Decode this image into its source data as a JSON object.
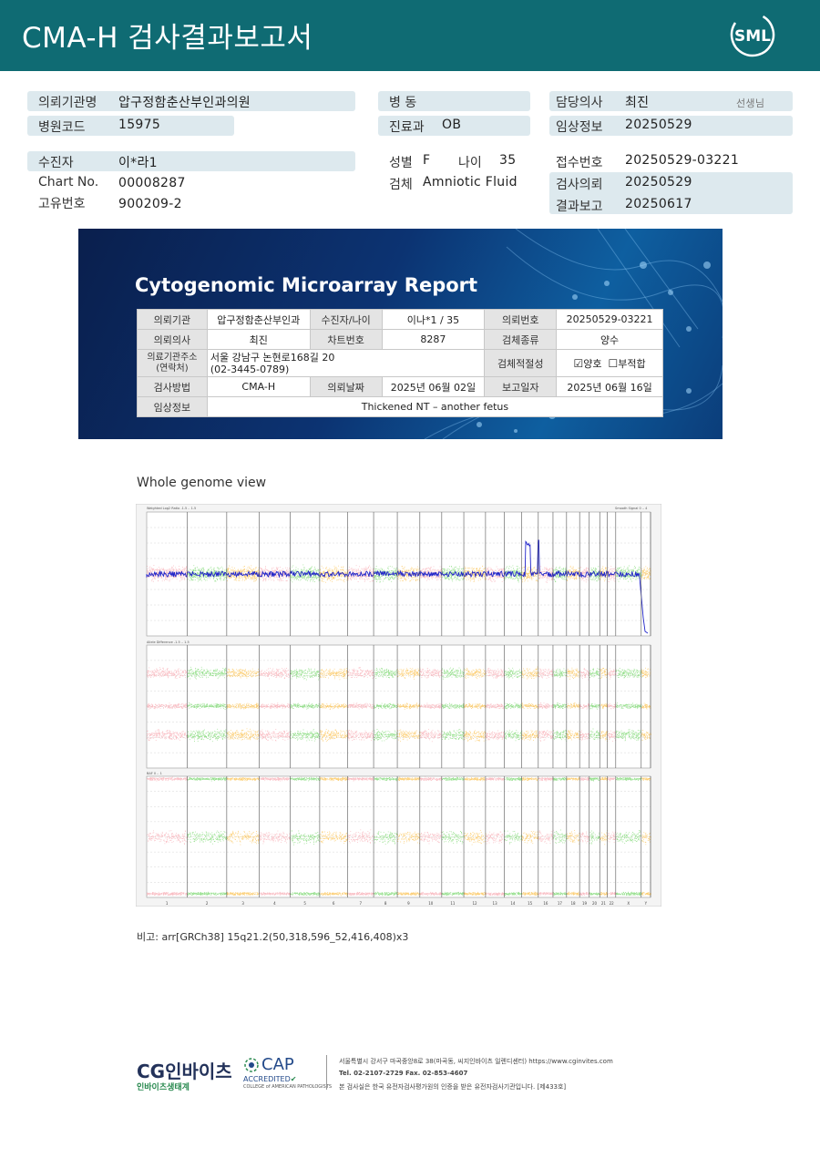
{
  "header": {
    "title": "CMA-H 검사결과보고서",
    "logo_text": "SML"
  },
  "info": {
    "institution_label": "의뢰기관명",
    "institution_value": "압구정함춘산부인과의원",
    "hospital_code_label": "병원코드",
    "hospital_code_value": "15975",
    "patient_label": "수진자",
    "patient_value": "이*라1",
    "chart_label": "Chart No.",
    "chart_value": "00008287",
    "unique_label": "고유번호",
    "unique_value": "900209-2",
    "ward_label": "병 동",
    "ward_value": "",
    "dept_label": "진료과",
    "dept_value": "OB",
    "sex_label": "성별",
    "sex_value": "F",
    "age_label": "나이",
    "age_value": "35",
    "specimen_label": "검체",
    "specimen_value": "Amniotic Fluid",
    "doctor_label": "담당의사",
    "doctor_value": "최진",
    "doctor_suffix": "선생님",
    "clinical_label": "임상정보",
    "clinical_value": "20250529",
    "receipt_label": "접수번호",
    "receipt_value": "20250529-03221",
    "request_label": "검사의뢰",
    "request_value": "20250529",
    "report_label": "결과보고",
    "report_value": "20250617"
  },
  "report": {
    "title": "Cytogenomic Microarray Report",
    "r1": [
      "의뢰기관",
      "압구정함춘산부인과",
      "수진자/나이",
      "이나*1 / 35",
      "의뢰번호",
      "20250529-03221"
    ],
    "r2": [
      "의뢰의사",
      "최진",
      "차트번호",
      "8287",
      "검체종류",
      "양수"
    ],
    "r3": [
      "의료기관주소",
      "(연락처)",
      "서울 강남구 논현로168길 20",
      "(02-3445-0789)",
      "검체적절성",
      "양호",
      "부적합"
    ],
    "r4": [
      "검사방법",
      "CMA-H",
      "의뢰날짜",
      "2025년 06월 02일",
      "보고일자",
      "2025년 06월 16일"
    ],
    "r5": [
      "임상정보",
      "Thickened NT – another fetus"
    ]
  },
  "genome": {
    "title": "Whole genome view",
    "panel1_label": "Weighted Log2 Ratio -1.5 .. 1.5",
    "panel1_right_label": "Smooth Signal 0 .. 4",
    "panel2_label": "Allele Difference -1.5 .. 1.5",
    "panel3_label": "BAF 0 .. 1",
    "chromosomes": [
      "1",
      "2",
      "3",
      "4",
      "5",
      "6",
      "7",
      "8",
      "9",
      "10",
      "11",
      "12",
      "13",
      "14",
      "15",
      "16",
      "17",
      "18",
      "19",
      "20",
      "21",
      "22",
      "X",
      "Y"
    ],
    "colors": {
      "pink": "#f7a8b0",
      "green": "#76d66a",
      "orange": "#fbbf4a",
      "blue": "#1f23c9"
    }
  },
  "note": {
    "label": "비고:",
    "text": "arr[GRCh38] 15q21.2(50,318,596_52,416,408)x3"
  },
  "footer": {
    "logo": "CG인바이츠",
    "sub": "인바이츠생태계",
    "cap": "CAP",
    "accredited": "ACCREDITED",
    "college": "COLLEGE of AMERICAN PATHOLOGISTS",
    "address": "서울특별시 강서구 마곡중앙8로 38(마곡동, 씨지인바이츠 일렌디센터)  https://www.cginvites.com",
    "tel": "Tel. 02-2107-2729   Fax. 02-853-4607",
    "cert": "본 검사실은 한국 유전자검사평가원의 인증을 받은 유전자검사기관입니다. [제433호]"
  }
}
